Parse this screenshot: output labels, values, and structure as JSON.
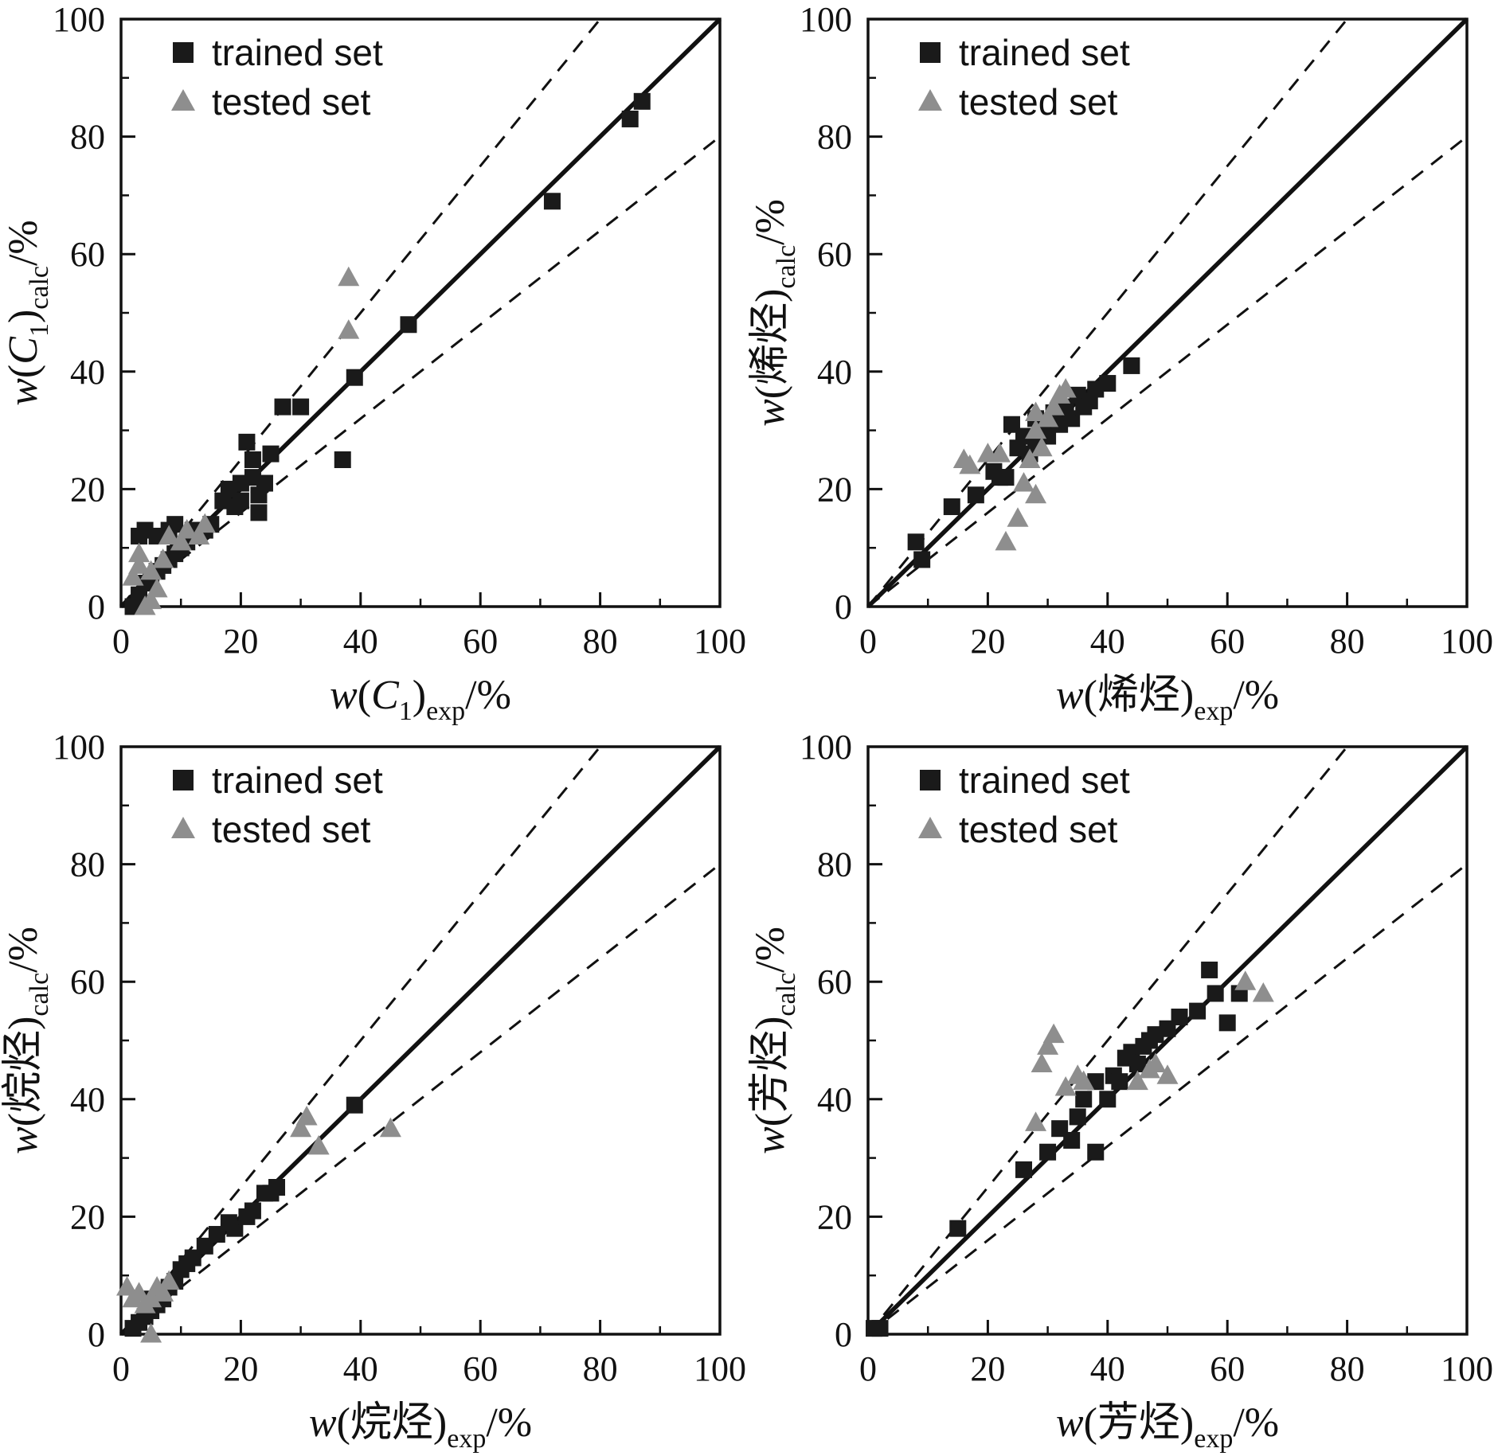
{
  "figure": {
    "background": "#ffffff",
    "description_note": ""
  },
  "style_colors": {
    "foreground": "#111111",
    "trained_marker": "#1a1a1a",
    "tested_marker": "#8e8e8e"
  },
  "chart_data": [
    {
      "type": "scatter",
      "title": "",
      "xlabel": {
        "w": "w",
        "arg": "C",
        "argsub": "1",
        "arg_italic": true,
        "sub": "exp",
        "unit": "/%"
      },
      "ylabel": {
        "w": "w",
        "arg": "C",
        "argsub": "1",
        "arg_italic": true,
        "sub": "calc",
        "unit": "/%"
      },
      "xlim": [
        0,
        100
      ],
      "ylim": [
        0,
        100
      ],
      "ticks": [
        0,
        20,
        40,
        60,
        80,
        100
      ],
      "minor_step": 10,
      "grid": false,
      "legend_position": "upper-left-inside",
      "lines": {
        "identity": true,
        "upper_dashed_slope": 1.25,
        "lower_dashed_slope": 0.8
      },
      "series": [
        {
          "name": "trained set",
          "marker": "square",
          "color": "#1a1a1a",
          "points": [
            [
              2,
              0
            ],
            [
              3,
              2
            ],
            [
              4,
              4
            ],
            [
              5,
              5
            ],
            [
              6,
              6
            ],
            [
              7,
              7
            ],
            [
              8,
              8
            ],
            [
              9,
              9
            ],
            [
              3,
              12
            ],
            [
              4,
              13
            ],
            [
              6,
              12
            ],
            [
              8,
              13
            ],
            [
              9,
              14
            ],
            [
              10,
              10
            ],
            [
              11,
              11
            ],
            [
              12,
              13
            ],
            [
              13,
              12
            ],
            [
              14,
              13
            ],
            [
              15,
              14
            ],
            [
              17,
              18
            ],
            [
              18,
              20
            ],
            [
              19,
              17
            ],
            [
              20,
              18
            ],
            [
              20,
              21
            ],
            [
              21,
              28
            ],
            [
              22,
              22
            ],
            [
              22,
              25
            ],
            [
              23,
              16
            ],
            [
              23,
              19
            ],
            [
              24,
              21
            ],
            [
              25,
              26
            ],
            [
              27,
              34
            ],
            [
              30,
              34
            ],
            [
              37,
              25
            ],
            [
              39,
              39
            ],
            [
              48,
              48
            ],
            [
              72,
              69
            ],
            [
              85,
              83
            ],
            [
              87,
              86
            ]
          ]
        },
        {
          "name": "tested set",
          "marker": "triangle",
          "color": "#8e8e8e",
          "points": [
            [
              2,
              5
            ],
            [
              3,
              7
            ],
            [
              3,
              9
            ],
            [
              4,
              0
            ],
            [
              5,
              1
            ],
            [
              5,
              6
            ],
            [
              6,
              3
            ],
            [
              7,
              8
            ],
            [
              8,
              12
            ],
            [
              10,
              11
            ],
            [
              11,
              13
            ],
            [
              13,
              12
            ],
            [
              14,
              14
            ],
            [
              38,
              56
            ],
            [
              38,
              47
            ]
          ]
        }
      ]
    },
    {
      "type": "scatter",
      "title": "",
      "xlabel": {
        "w": "w",
        "arg": "烯烃",
        "argsub": "",
        "arg_italic": false,
        "sub": "exp",
        "unit": "/%"
      },
      "ylabel": {
        "w": "w",
        "arg": "烯烃",
        "argsub": "",
        "arg_italic": false,
        "sub": "calc",
        "unit": "/%"
      },
      "xlim": [
        0,
        100
      ],
      "ylim": [
        0,
        100
      ],
      "ticks": [
        0,
        20,
        40,
        60,
        80,
        100
      ],
      "minor_step": 10,
      "grid": false,
      "legend_position": "upper-left-inside",
      "lines": {
        "identity": true,
        "upper_dashed_slope": 1.25,
        "lower_dashed_slope": 0.8
      },
      "series": [
        {
          "name": "trained set",
          "marker": "square",
          "color": "#1a1a1a",
          "points": [
            [
              8,
              11
            ],
            [
              9,
              8
            ],
            [
              14,
              17
            ],
            [
              18,
              19
            ],
            [
              21,
              23
            ],
            [
              22,
              22
            ],
            [
              23,
              22
            ],
            [
              24,
              31
            ],
            [
              25,
              27
            ],
            [
              26,
              29
            ],
            [
              27,
              26
            ],
            [
              28,
              28
            ],
            [
              28,
              32
            ],
            [
              29,
              30
            ],
            [
              30,
              29
            ],
            [
              31,
              33
            ],
            [
              32,
              31
            ],
            [
              33,
              34
            ],
            [
              34,
              32
            ],
            [
              35,
              36
            ],
            [
              36,
              34
            ],
            [
              37,
              35
            ],
            [
              38,
              37
            ],
            [
              40,
              38
            ],
            [
              44,
              41
            ]
          ]
        },
        {
          "name": "tested set",
          "marker": "triangle",
          "color": "#8e8e8e",
          "points": [
            [
              16,
              25
            ],
            [
              17,
              24
            ],
            [
              20,
              26
            ],
            [
              22,
              26
            ],
            [
              23,
              11
            ],
            [
              25,
              15
            ],
            [
              26,
              21
            ],
            [
              27,
              25
            ],
            [
              28,
              19
            ],
            [
              28,
              30
            ],
            [
              28,
              33
            ],
            [
              29,
              27
            ],
            [
              30,
              32
            ],
            [
              31,
              34
            ],
            [
              32,
              36
            ],
            [
              33,
              37
            ]
          ]
        }
      ]
    },
    {
      "type": "scatter",
      "title": "",
      "xlabel": {
        "w": "w",
        "arg": "烷烃",
        "argsub": "",
        "arg_italic": false,
        "sub": "exp",
        "unit": "/%"
      },
      "ylabel": {
        "w": "w",
        "arg": "烷烃",
        "argsub": "",
        "arg_italic": false,
        "sub": "calc",
        "unit": "/%"
      },
      "xlim": [
        0,
        100
      ],
      "ylim": [
        0,
        100
      ],
      "ticks": [
        0,
        20,
        40,
        60,
        80,
        100
      ],
      "minor_step": 10,
      "grid": false,
      "legend_position": "upper-left-inside",
      "lines": {
        "identity": true,
        "upper_dashed_slope": 1.25,
        "lower_dashed_slope": 0.8
      },
      "series": [
        {
          "name": "trained set",
          "marker": "square",
          "color": "#1a1a1a",
          "points": [
            [
              2,
              1
            ],
            [
              3,
              2
            ],
            [
              4,
              3
            ],
            [
              5,
              4
            ],
            [
              5,
              6
            ],
            [
              6,
              5
            ],
            [
              7,
              6
            ],
            [
              8,
              8
            ],
            [
              9,
              9
            ],
            [
              10,
              11
            ],
            [
              11,
              12
            ],
            [
              12,
              13
            ],
            [
              14,
              15
            ],
            [
              16,
              17
            ],
            [
              18,
              19
            ],
            [
              19,
              18
            ],
            [
              21,
              20
            ],
            [
              22,
              21
            ],
            [
              24,
              24
            ],
            [
              25,
              24
            ],
            [
              26,
              25
            ],
            [
              39,
              39
            ]
          ]
        },
        {
          "name": "tested set",
          "marker": "triangle",
          "color": "#8e8e8e",
          "points": [
            [
              1,
              8
            ],
            [
              2,
              6
            ],
            [
              3,
              7
            ],
            [
              4,
              5
            ],
            [
              5,
              0
            ],
            [
              5,
              6
            ],
            [
              6,
              8
            ],
            [
              7,
              7
            ],
            [
              8,
              9
            ],
            [
              30,
              35
            ],
            [
              31,
              37
            ],
            [
              33,
              32
            ],
            [
              45,
              35
            ]
          ]
        }
      ]
    },
    {
      "type": "scatter",
      "title": "",
      "xlabel": {
        "w": "w",
        "arg": "芳烃",
        "argsub": "",
        "arg_italic": false,
        "sub": "exp",
        "unit": "/%"
      },
      "ylabel": {
        "w": "w",
        "arg": "芳烃",
        "argsub": "",
        "arg_italic": false,
        "sub": "calc",
        "unit": "/%"
      },
      "xlim": [
        0,
        100
      ],
      "ylim": [
        0,
        100
      ],
      "ticks": [
        0,
        20,
        40,
        60,
        80,
        100
      ],
      "minor_step": 10,
      "grid": false,
      "legend_position": "upper-left-inside",
      "lines": {
        "identity": true,
        "upper_dashed_slope": 1.25,
        "lower_dashed_slope": 0.8
      },
      "series": [
        {
          "name": "trained set",
          "marker": "square",
          "color": "#1a1a1a",
          "points": [
            [
              1,
              1
            ],
            [
              2,
              1
            ],
            [
              15,
              18
            ],
            [
              26,
              28
            ],
            [
              30,
              31
            ],
            [
              32,
              35
            ],
            [
              34,
              33
            ],
            [
              35,
              37
            ],
            [
              36,
              40
            ],
            [
              38,
              31
            ],
            [
              38,
              43
            ],
            [
              40,
              40
            ],
            [
              41,
              44
            ],
            [
              42,
              43
            ],
            [
              43,
              47
            ],
            [
              44,
              48
            ],
            [
              45,
              46
            ],
            [
              46,
              49
            ],
            [
              47,
              50
            ],
            [
              48,
              51
            ],
            [
              50,
              52
            ],
            [
              52,
              54
            ],
            [
              55,
              55
            ],
            [
              57,
              62
            ],
            [
              58,
              58
            ],
            [
              60,
              53
            ],
            [
              62,
              58
            ]
          ]
        },
        {
          "name": "tested set",
          "marker": "triangle",
          "color": "#8e8e8e",
          "points": [
            [
              28,
              36
            ],
            [
              29,
              46
            ],
            [
              30,
              49
            ],
            [
              31,
              51
            ],
            [
              33,
              42
            ],
            [
              35,
              44
            ],
            [
              36,
              43
            ],
            [
              45,
              43
            ],
            [
              47,
              45
            ],
            [
              48,
              46
            ],
            [
              50,
              44
            ],
            [
              63,
              60
            ],
            [
              66,
              58
            ]
          ]
        }
      ]
    }
  ]
}
